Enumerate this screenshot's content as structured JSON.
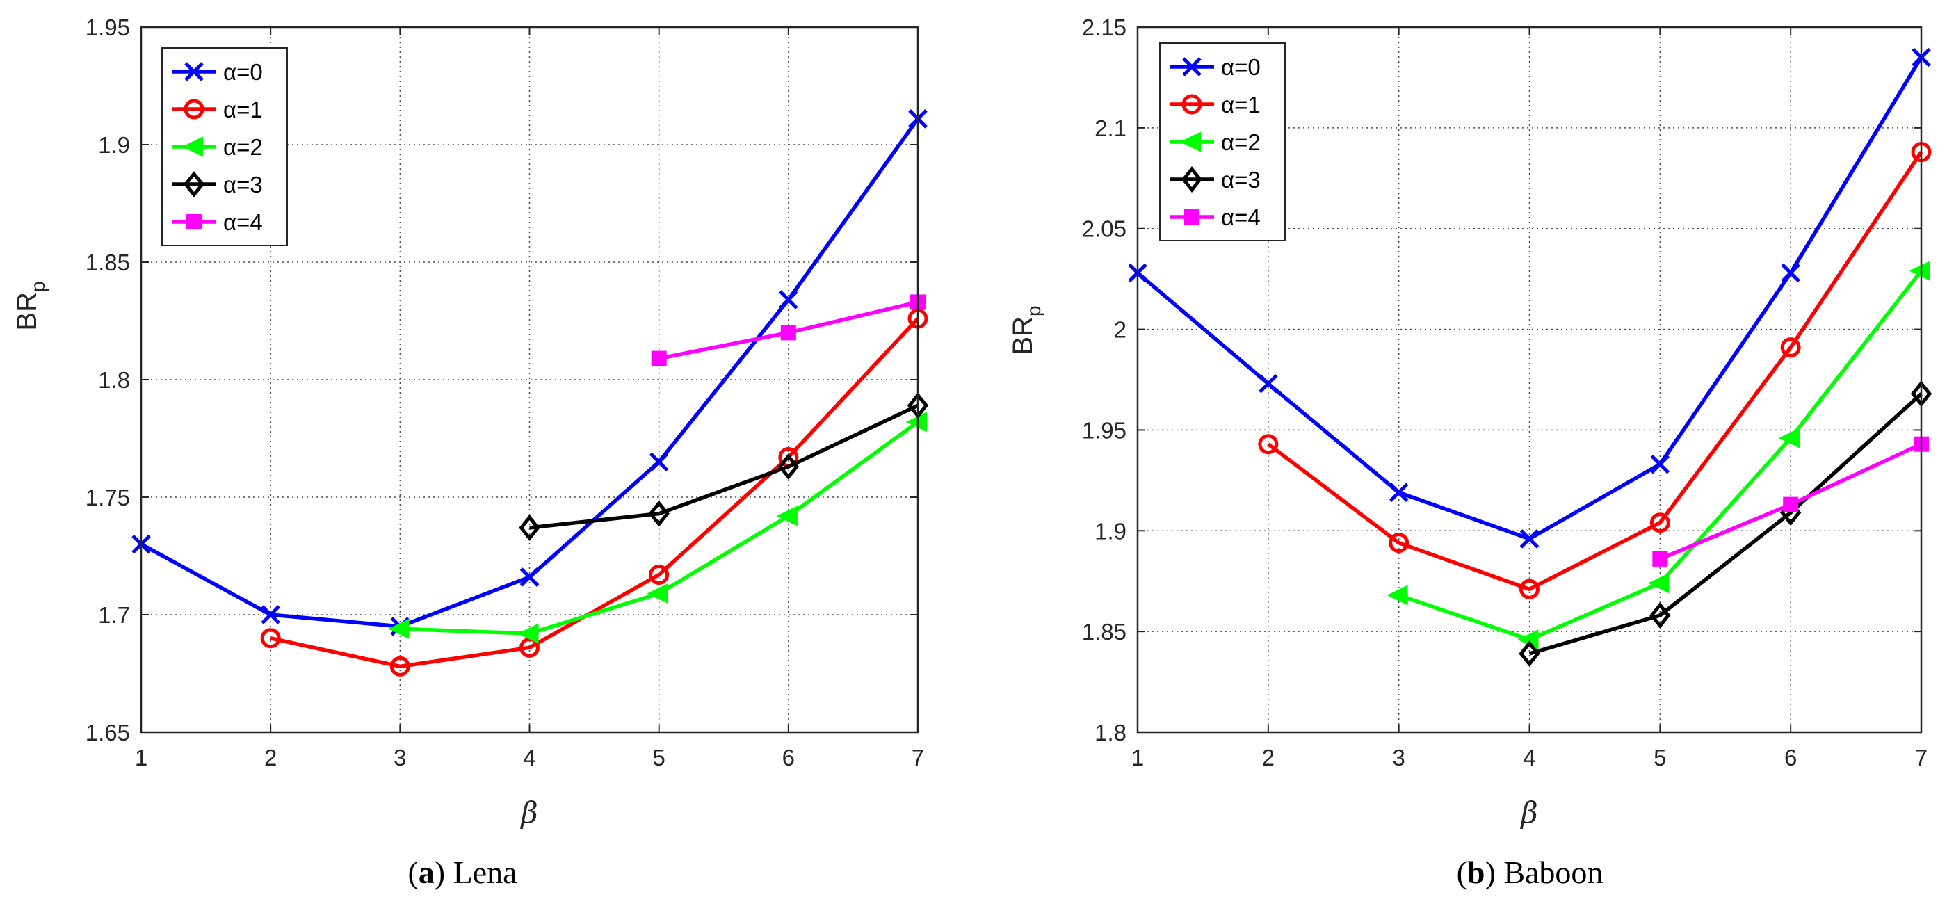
{
  "colors": {
    "alpha_0": "#0000ff",
    "alpha_1": "#ff0000",
    "alpha_2": "#00ff00",
    "alpha_3": "#000000",
    "alpha_4": "#ff00ff"
  },
  "chart_data": [
    {
      "type": "line",
      "title": "",
      "caption": {
        "letter": "a",
        "name": "Lena"
      },
      "xlabel": "β",
      "ylabel": "BR",
      "ylabel_sub": "p",
      "xlim": [
        1,
        7
      ],
      "ylim": [
        1.65,
        1.95
      ],
      "xticks": [
        1,
        2,
        3,
        4,
        5,
        6,
        7
      ],
      "yticks": [
        1.65,
        1.7,
        1.75,
        1.8,
        1.85,
        1.9,
        1.95
      ],
      "grid": true,
      "legend_position": "top-left",
      "series": [
        {
          "name": "α=0",
          "marker": "x",
          "color_key": "alpha_0",
          "x": [
            1,
            2,
            3,
            4,
            5,
            6,
            7
          ],
          "values": [
            1.73,
            1.7,
            1.695,
            1.716,
            1.765,
            1.834,
            1.911
          ]
        },
        {
          "name": "α=1",
          "marker": "circle",
          "color_key": "alpha_1",
          "x": [
            2,
            3,
            4,
            5,
            6,
            7
          ],
          "values": [
            1.69,
            1.678,
            1.686,
            1.717,
            1.767,
            1.826
          ]
        },
        {
          "name": "α=2",
          "marker": "triangle-left",
          "color_key": "alpha_2",
          "x": [
            3,
            4,
            5,
            6,
            7
          ],
          "values": [
            1.694,
            1.692,
            1.709,
            1.742,
            1.782
          ]
        },
        {
          "name": "α=3",
          "marker": "diamond",
          "color_key": "alpha_3",
          "x": [
            4,
            5,
            6,
            7
          ],
          "values": [
            1.737,
            1.743,
            1.763,
            1.789
          ]
        },
        {
          "name": "α=4",
          "marker": "square",
          "color_key": "alpha_4",
          "x": [
            5,
            6,
            7
          ],
          "values": [
            1.809,
            1.82,
            1.833
          ]
        }
      ]
    },
    {
      "type": "line",
      "title": "",
      "caption": {
        "letter": "b",
        "name": "Baboon"
      },
      "xlabel": "β",
      "ylabel": "BR",
      "ylabel_sub": "p",
      "xlim": [
        1,
        7
      ],
      "ylim": [
        1.8,
        2.15
      ],
      "xticks": [
        1,
        2,
        3,
        4,
        5,
        6,
        7
      ],
      "yticks": [
        1.8,
        1.85,
        1.9,
        1.95,
        2,
        2.05,
        2.1,
        2.15
      ],
      "grid": true,
      "legend_position": "top-left",
      "series": [
        {
          "name": "α=0",
          "marker": "x",
          "color_key": "alpha_0",
          "x": [
            1,
            2,
            3,
            4,
            5,
            6,
            7
          ],
          "values": [
            2.028,
            1.973,
            1.919,
            1.896,
            1.933,
            2.028,
            2.135
          ]
        },
        {
          "name": "α=1",
          "marker": "circle",
          "color_key": "alpha_1",
          "x": [
            2,
            3,
            4,
            5,
            6,
            7
          ],
          "values": [
            1.943,
            1.894,
            1.871,
            1.904,
            1.991,
            2.088
          ]
        },
        {
          "name": "α=2",
          "marker": "triangle-left",
          "color_key": "alpha_2",
          "x": [
            3,
            4,
            5,
            6,
            7
          ],
          "values": [
            1.868,
            1.846,
            1.874,
            1.946,
            2.029
          ]
        },
        {
          "name": "α=3",
          "marker": "diamond",
          "color_key": "alpha_3",
          "x": [
            4,
            5,
            6,
            7
          ],
          "values": [
            1.839,
            1.858,
            1.909,
            1.968
          ]
        },
        {
          "name": "α=4",
          "marker": "square",
          "color_key": "alpha_4",
          "x": [
            5,
            6,
            7
          ],
          "values": [
            1.886,
            1.913,
            1.943
          ]
        }
      ]
    }
  ]
}
